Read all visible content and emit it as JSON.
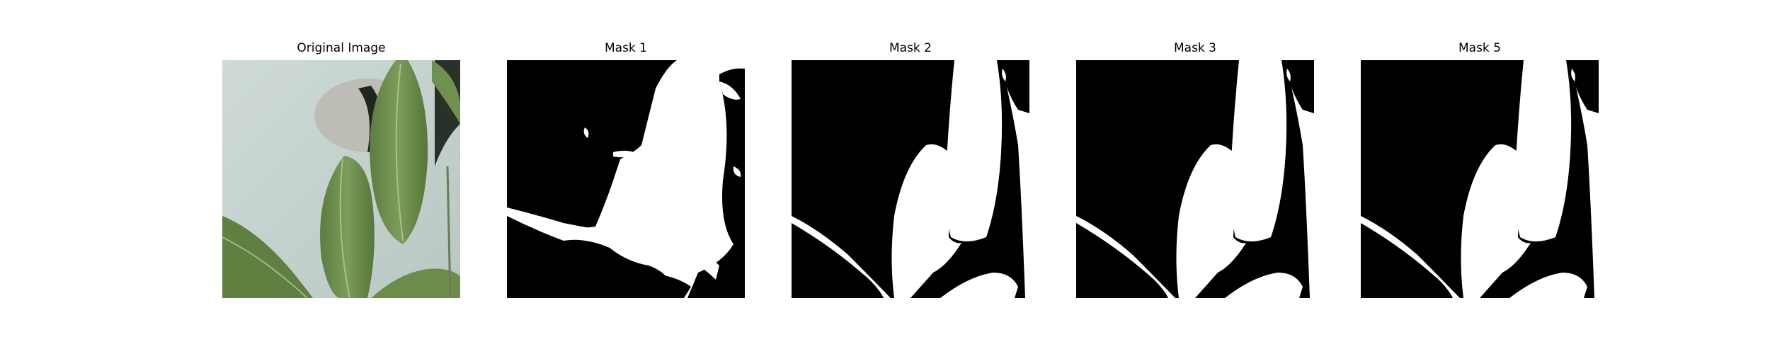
{
  "figure": {
    "panels": [
      {
        "title": "Original Image",
        "kind": "photo"
      },
      {
        "title": "Mask 1",
        "kind": "mask"
      },
      {
        "title": "Mask 2",
        "kind": "mask"
      },
      {
        "title": "Mask 3",
        "kind": "mask"
      },
      {
        "title": "Mask 5",
        "kind": "mask"
      }
    ]
  },
  "colors": {
    "mask_background": "#000000",
    "mask_foreground": "#ffffff",
    "wall": "#c9d6d2",
    "leaf": "#6e8f4e",
    "leaf_dark": "#4f6e37",
    "lamp": "#bdbfb8",
    "lamp_shadow": "#1e2520"
  }
}
